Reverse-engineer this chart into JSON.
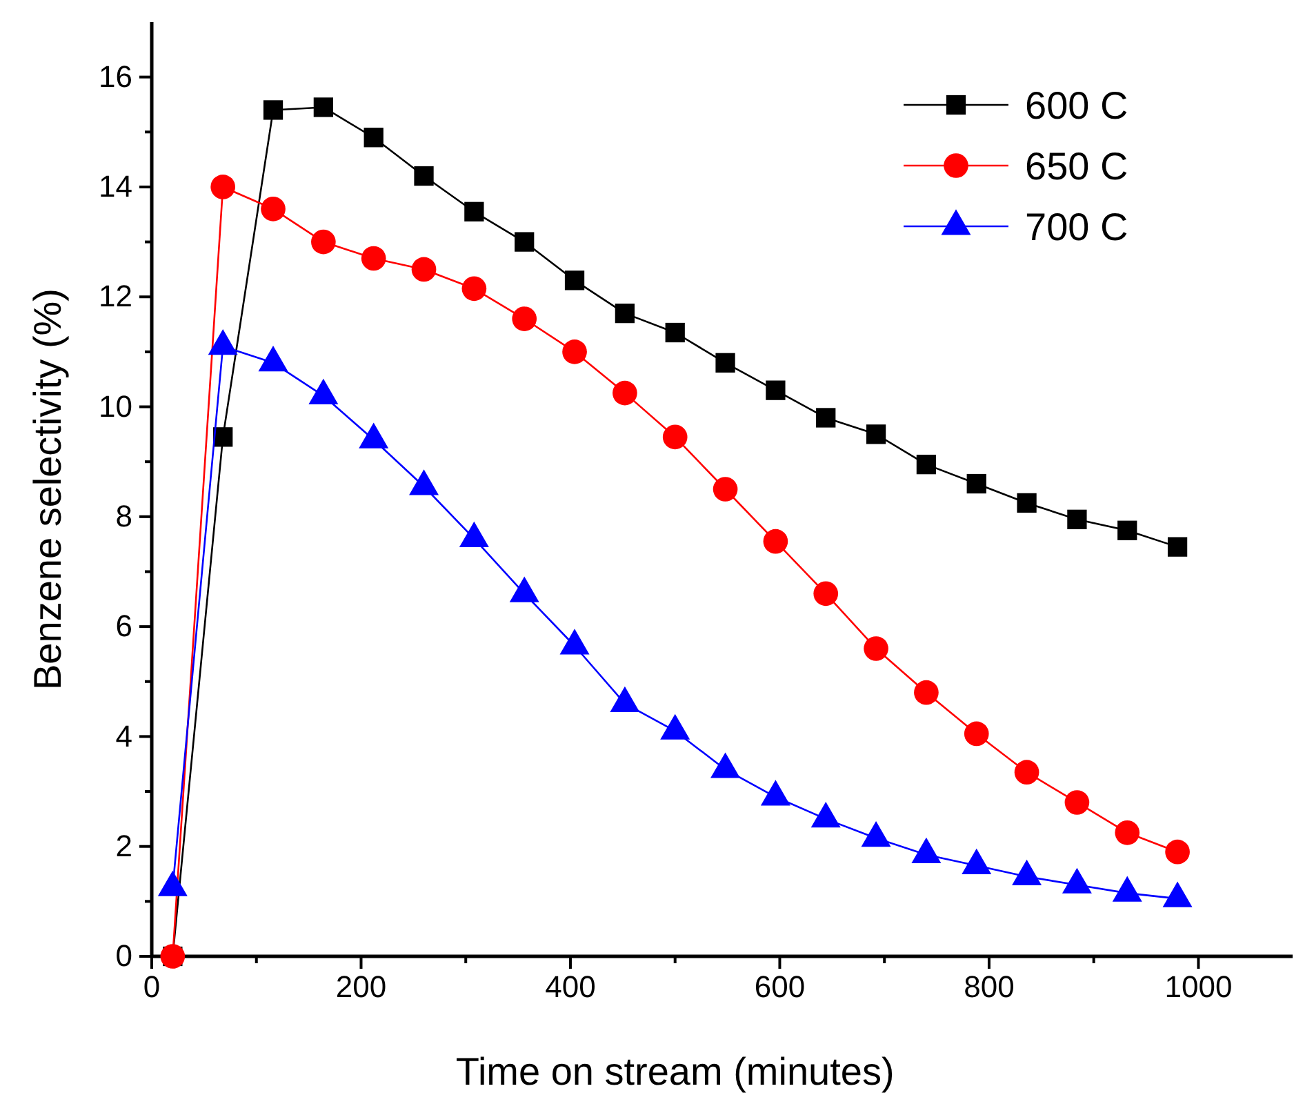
{
  "chart_data": {
    "type": "line",
    "xlabel": "Time on stream (minutes)",
    "ylabel": "Benzene selectivity (%)",
    "x": [
      20,
      68,
      116,
      164,
      212,
      260,
      308,
      356,
      404,
      452,
      500,
      548,
      596,
      644,
      692,
      740,
      788,
      836,
      884,
      932,
      980
    ],
    "xlim": [
      0,
      1090
    ],
    "ylim": [
      0,
      17
    ],
    "xticks": [
      0,
      {
        "value": 100,
        "label": null
      },
      200,
      {
        "value": 300,
        "label": null
      },
      400,
      {
        "value": 500,
        "label": null
      },
      600,
      {
        "value": 700,
        "label": null
      },
      800,
      {
        "value": 900,
        "label": null
      },
      1000
    ],
    "yticks": [
      0,
      {
        "value": 1,
        "label": null
      },
      2,
      {
        "value": 3,
        "label": null
      },
      4,
      {
        "value": 5,
        "label": null
      },
      6,
      {
        "value": 7,
        "label": null
      },
      8,
      {
        "value": 9,
        "label": null
      },
      10,
      {
        "value": 11,
        "label": null
      },
      12,
      {
        "value": 13,
        "label": null
      },
      14,
      {
        "value": 15,
        "label": null
      },
      16
    ],
    "legend": "top right",
    "grid": false,
    "line_style": "solid",
    "series": [
      {
        "name": "600 C",
        "color": "#000000",
        "marker": "square",
        "values": [
          0,
          9.45,
          15.4,
          15.45,
          14.9,
          14.2,
          13.55,
          13.0,
          12.3,
          11.7,
          11.35,
          10.8,
          10.3,
          9.8,
          9.5,
          8.95,
          8.6,
          8.25,
          7.95,
          7.75,
          7.45
        ]
      },
      {
        "name": "650 C",
        "color": "#ff0000",
        "marker": "circle",
        "values": [
          0,
          14.0,
          13.6,
          13.0,
          12.7,
          12.5,
          12.15,
          11.6,
          11.0,
          10.25,
          9.45,
          8.5,
          7.55,
          6.6,
          5.6,
          4.8,
          4.05,
          3.35,
          2.8,
          2.25,
          1.9
        ]
      },
      {
        "name": "700 C",
        "color": "#0000ff",
        "marker": "triangle",
        "values": [
          1.25,
          11.1,
          10.8,
          10.2,
          9.4,
          8.55,
          7.6,
          6.6,
          5.65,
          4.6,
          4.1,
          3.4,
          2.9,
          2.5,
          2.15,
          1.85,
          1.65,
          1.45,
          1.3,
          1.15,
          1.05
        ]
      }
    ]
  }
}
